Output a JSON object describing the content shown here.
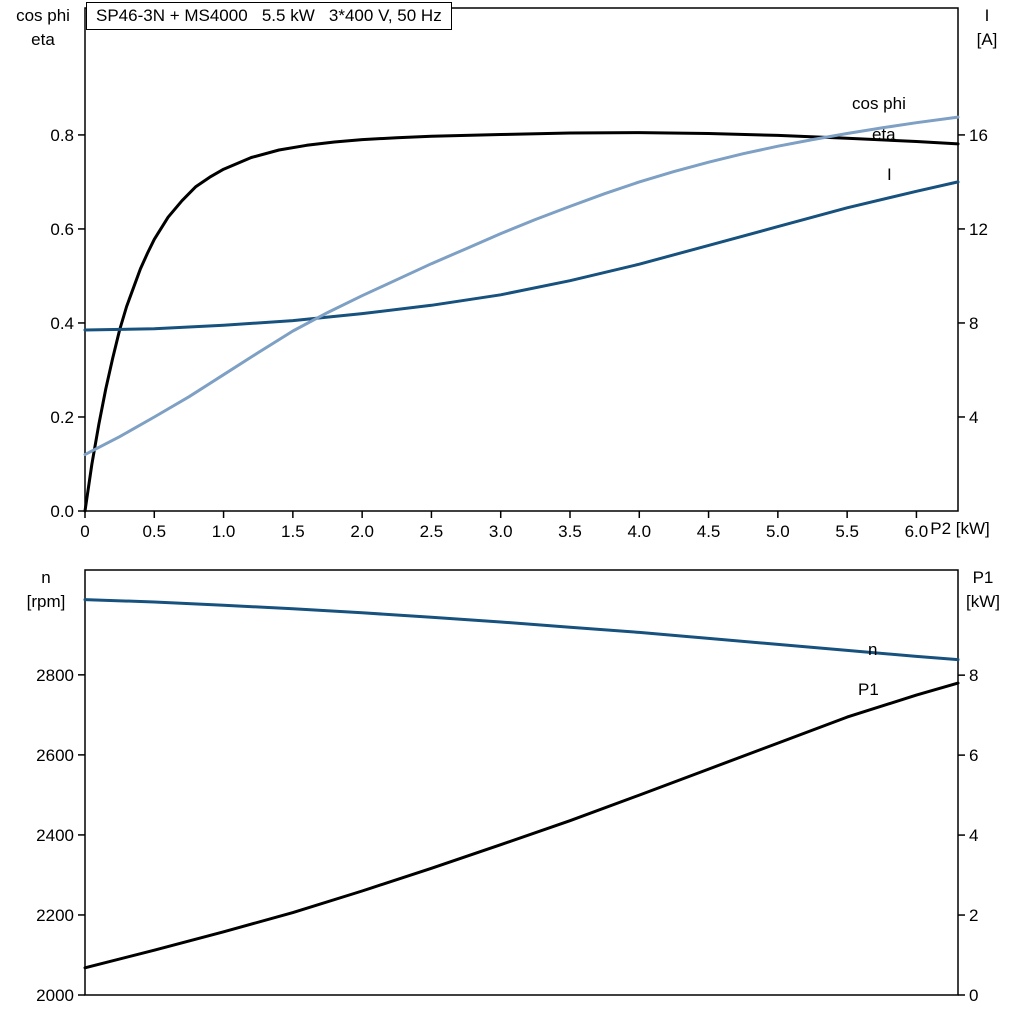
{
  "chart_data": [
    {
      "name": "motor-electrical-curves",
      "type": "line",
      "title": "SP46-3N + MS4000   5.5 kW   3*400 V, 50 Hz",
      "x_axis": {
        "label": "P2 [kW]",
        "min": 0,
        "max": 6.3,
        "ticks": [
          0,
          0.5,
          1.0,
          1.5,
          2.0,
          2.5,
          3.0,
          3.5,
          4.0,
          4.5,
          5.0,
          5.5,
          6.0
        ],
        "tick_labels": [
          "0",
          "0.5",
          "1.0",
          "1.5",
          "2.0",
          "2.5",
          "3.0",
          "3.5",
          "4.0",
          "4.5",
          "5.0",
          "5.5",
          "6.0"
        ]
      },
      "left_axis": {
        "label_lines": [
          "cos phi",
          "eta"
        ],
        "min": 0,
        "max": 1.07,
        "ticks": [
          0.0,
          0.2,
          0.4,
          0.6,
          0.8
        ],
        "tick_labels": [
          "0.0",
          "0.2",
          "0.4",
          "0.6",
          "0.8"
        ]
      },
      "right_axis": {
        "label_lines": [
          "I",
          "[A]"
        ],
        "min": 0,
        "max": 21.4,
        "ticks": [
          4,
          8,
          12,
          16
        ],
        "tick_labels": [
          "4",
          "8",
          "12",
          "16"
        ]
      },
      "series": [
        {
          "name": "eta",
          "label": "eta",
          "axis": "left",
          "color": "#000000",
          "points": [
            [
              0,
              0
            ],
            [
              0.05,
              0.1
            ],
            [
              0.1,
              0.185
            ],
            [
              0.15,
              0.26
            ],
            [
              0.2,
              0.325
            ],
            [
              0.25,
              0.385
            ],
            [
              0.3,
              0.435
            ],
            [
              0.35,
              0.475
            ],
            [
              0.4,
              0.515
            ],
            [
              0.45,
              0.548
            ],
            [
              0.5,
              0.578
            ],
            [
              0.6,
              0.625
            ],
            [
              0.7,
              0.66
            ],
            [
              0.8,
              0.69
            ],
            [
              0.9,
              0.71
            ],
            [
              1.0,
              0.727
            ],
            [
              1.2,
              0.752
            ],
            [
              1.4,
              0.768
            ],
            [
              1.6,
              0.778
            ],
            [
              1.8,
              0.785
            ],
            [
              2.0,
              0.79
            ],
            [
              2.25,
              0.794
            ],
            [
              2.5,
              0.797
            ],
            [
              3.0,
              0.801
            ],
            [
              3.5,
              0.804
            ],
            [
              4.0,
              0.805
            ],
            [
              4.5,
              0.803
            ],
            [
              5.0,
              0.799
            ],
            [
              5.5,
              0.793
            ],
            [
              6.0,
              0.786
            ],
            [
              6.3,
              0.781
            ]
          ]
        },
        {
          "name": "I",
          "label": "I",
          "axis": "right",
          "color": "#17517e",
          "points": [
            [
              0,
              7.7
            ],
            [
              0.5,
              7.75
            ],
            [
              1.0,
              7.9
            ],
            [
              1.5,
              8.1
            ],
            [
              2.0,
              8.4
            ],
            [
              2.5,
              8.75
            ],
            [
              3.0,
              9.2
            ],
            [
              3.5,
              9.8
            ],
            [
              4.0,
              10.5
            ],
            [
              4.5,
              11.3
            ],
            [
              5.0,
              12.1
            ],
            [
              5.5,
              12.9
            ],
            [
              6.0,
              13.6
            ],
            [
              6.3,
              14.0
            ]
          ]
        },
        {
          "name": "cos_phi",
          "label": "cos phi",
          "axis": "left",
          "color": "#7da0c4",
          "points": [
            [
              0,
              0.12
            ],
            [
              0.25,
              0.158
            ],
            [
              0.5,
              0.2
            ],
            [
              0.75,
              0.243
            ],
            [
              1.0,
              0.29
            ],
            [
              1.25,
              0.337
            ],
            [
              1.5,
              0.383
            ],
            [
              1.75,
              0.422
            ],
            [
              2.0,
              0.458
            ],
            [
              2.25,
              0.492
            ],
            [
              2.5,
              0.526
            ],
            [
              2.75,
              0.558
            ],
            [
              3.0,
              0.59
            ],
            [
              3.25,
              0.62
            ],
            [
              3.5,
              0.648
            ],
            [
              3.75,
              0.675
            ],
            [
              4.0,
              0.7
            ],
            [
              4.25,
              0.722
            ],
            [
              4.5,
              0.742
            ],
            [
              4.75,
              0.76
            ],
            [
              5.0,
              0.776
            ],
            [
              5.25,
              0.79
            ],
            [
              5.5,
              0.803
            ],
            [
              5.75,
              0.815
            ],
            [
              6.0,
              0.826
            ],
            [
              6.3,
              0.838
            ]
          ]
        }
      ]
    },
    {
      "name": "motor-speed-power-curves",
      "type": "line",
      "title": "",
      "x_axis": {
        "label": "",
        "min": 0,
        "max": 6.3,
        "ticks": [],
        "tick_labels": []
      },
      "left_axis": {
        "label_lines": [
          "n",
          "[rpm]"
        ],
        "min": 2000,
        "max": 3062,
        "ticks": [
          2000,
          2200,
          2400,
          2600,
          2800
        ],
        "tick_labels": [
          "2000",
          "2200",
          "2400",
          "2600",
          "2800"
        ]
      },
      "right_axis": {
        "label_lines": [
          "P1",
          "[kW]"
        ],
        "min": 0,
        "max": 10.63,
        "ticks": [
          0,
          2,
          4,
          6,
          8
        ],
        "tick_labels": [
          "0",
          "2",
          "4",
          "6",
          "8"
        ]
      },
      "series": [
        {
          "name": "n",
          "label": "n",
          "axis": "left",
          "color": "#17517e",
          "points": [
            [
              0,
              2988
            ],
            [
              0.5,
              2982
            ],
            [
              1.0,
              2974
            ],
            [
              1.5,
              2965
            ],
            [
              2.0,
              2955
            ],
            [
              2.5,
              2944
            ],
            [
              3.0,
              2932
            ],
            [
              3.5,
              2919
            ],
            [
              4.0,
              2906
            ],
            [
              4.5,
              2891
            ],
            [
              5.0,
              2876
            ],
            [
              5.5,
              2861
            ],
            [
              6.0,
              2846
            ],
            [
              6.3,
              2838
            ]
          ]
        },
        {
          "name": "P1",
          "label": "P1",
          "axis": "right",
          "color": "#000000",
          "points": [
            [
              0,
              0.68
            ],
            [
              0.5,
              1.12
            ],
            [
              1.0,
              1.58
            ],
            [
              1.5,
              2.06
            ],
            [
              2.0,
              2.6
            ],
            [
              2.5,
              3.17
            ],
            [
              3.0,
              3.76
            ],
            [
              3.5,
              4.36
            ],
            [
              4.0,
              5.0
            ],
            [
              4.5,
              5.65
            ],
            [
              5.0,
              6.3
            ],
            [
              5.5,
              6.95
            ],
            [
              6.0,
              7.5
            ],
            [
              6.3,
              7.8
            ]
          ]
        }
      ]
    }
  ]
}
